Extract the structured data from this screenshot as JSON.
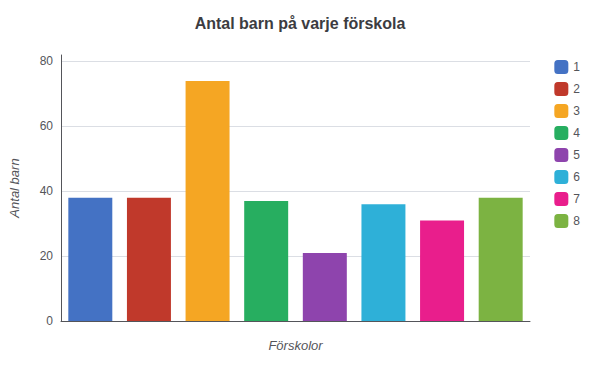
{
  "chart_data": {
    "type": "bar",
    "title": "Antal barn på varje förskola",
    "xlabel": "Förskolor",
    "ylabel": "Antal barn",
    "categories": [
      "1",
      "2",
      "3",
      "4",
      "5",
      "6",
      "7",
      "8"
    ],
    "values": [
      38,
      38,
      74,
      37,
      21,
      36,
      31,
      38
    ],
    "colors": [
      "#4472C4",
      "#C0392B",
      "#F5A623",
      "#27AE60",
      "#8E44AD",
      "#2EB0D8",
      "#E91E8C",
      "#7CB342"
    ],
    "ylim": [
      0,
      82
    ],
    "yticks": [
      0,
      20,
      40,
      60,
      80
    ],
    "grid": true,
    "legend": "right",
    "tick_labels": "y"
  }
}
